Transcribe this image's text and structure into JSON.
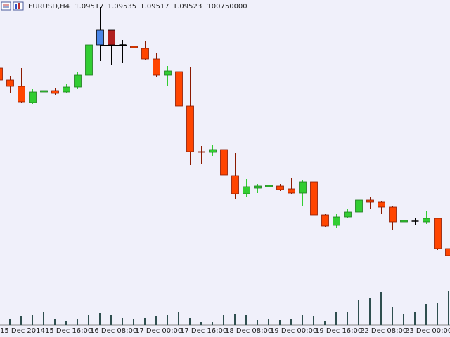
{
  "chart_data": {
    "type": "candlestick",
    "header": {
      "symbol": "EURUSD,H4",
      "open": 1.09517,
      "high": 1.09535,
      "low": 1.09517,
      "close": 1.09523,
      "volume": 100750000
    },
    "categories": [
      "15 Dec 2014",
      null,
      null,
      null,
      "15 Dec 16:00",
      null,
      null,
      null,
      "16 Dec 08:00",
      null,
      null,
      null,
      "17 Dec 00:00",
      null,
      null,
      null,
      "17 Dec 16:00",
      null,
      null,
      null,
      "18 Dec 08:00",
      null,
      null,
      null,
      "19 Dec 00:00",
      null,
      null,
      null,
      "19 Dec 16:00",
      null,
      null,
      null,
      "22 Dec 08:00",
      null,
      null,
      null,
      "23 Dec 00:00",
      null,
      null,
      null,
      "2"
    ],
    "open": [
      1.2503,
      1.2486,
      1.2477,
      1.2454,
      1.2469,
      1.2471,
      1.2469,
      1.2476,
      1.2493,
      1.2536,
      1.2557,
      1.2536,
      1.2534,
      1.2531,
      1.2516,
      1.2493,
      1.2498,
      1.2449,
      1.2384,
      1.2383,
      1.2387,
      1.235,
      1.2324,
      1.2332,
      1.2334,
      1.2335,
      1.2331,
      1.2325,
      1.2341,
      1.2294,
      1.2279,
      1.2291,
      1.2298,
      1.2315,
      1.2312,
      1.2305,
      1.2284,
      1.2285,
      1.2284,
      1.2289,
      1.2246
    ],
    "high": [
      1.2503,
      1.2492,
      1.2503,
      1.2473,
      1.2508,
      1.2475,
      1.2481,
      1.2497,
      1.2545,
      1.259,
      1.2557,
      1.2543,
      1.2538,
      1.2541,
      1.2524,
      1.2506,
      1.2502,
      1.2505,
      1.2392,
      1.2394,
      1.2388,
      1.2382,
      1.2345,
      1.2338,
      1.234,
      1.2338,
      1.2346,
      1.2344,
      1.235,
      1.2295,
      1.2295,
      1.2303,
      1.2323,
      1.232,
      1.2314,
      1.2306,
      1.229,
      1.229,
      1.2299,
      1.229,
      1.2252
    ],
    "low": [
      1.2486,
      1.2467,
      1.2454,
      1.2452,
      1.245,
      1.2464,
      1.2467,
      1.2473,
      1.2473,
      1.2513,
      1.2507,
      1.251,
      1.2528,
      1.2515,
      1.249,
      1.2478,
      1.2425,
      1.2365,
      1.2366,
      1.2378,
      1.235,
      1.2317,
      1.2319,
      1.2325,
      1.2327,
      1.2328,
      1.2323,
      1.2306,
      1.2278,
      1.2276,
      1.2275,
      1.2289,
      1.2298,
      1.2303,
      1.2295,
      1.2273,
      1.2278,
      1.228,
      1.2281,
      1.2244,
      1.2227
    ],
    "close": [
      1.2486,
      1.2477,
      1.2455,
      1.2469,
      1.2471,
      1.2467,
      1.2476,
      1.2493,
      1.2536,
      1.2557,
      1.2536,
      1.2536,
      1.2532,
      1.2516,
      1.2493,
      1.2499,
      1.2449,
      1.2384,
      1.2383,
      1.2387,
      1.2351,
      1.2324,
      1.2334,
      1.2335,
      1.2336,
      1.233,
      1.2325,
      1.2341,
      1.2294,
      1.2278,
      1.2291,
      1.2298,
      1.2315,
      1.2312,
      1.2305,
      1.2284,
      1.2286,
      1.2285,
      1.2289,
      1.2246,
      1.2236
    ],
    "volume": [
      300,
      800,
      1300,
      1500,
      1900,
      800,
      600,
      800,
      1400,
      1700,
      1400,
      1000,
      800,
      1000,
      1300,
      1400,
      1800,
      1000,
      500,
      500,
      1500,
      1600,
      1500,
      700,
      800,
      700,
      800,
      1400,
      1300,
      600,
      1800,
      1800,
      3500,
      3900,
      4700,
      2600,
      1600,
      1900,
      3000,
      3100,
      4800
    ],
    "ylim": [
      1.2137,
      1.26
    ],
    "volume_lim": [
      0,
      10000
    ],
    "up_color": "#32cd32",
    "up_edge": "#1e7a1e",
    "down_color": "#ff4500",
    "down_edge": "#8b1a00",
    "doji_color": "#000000",
    "volume_color": "#2f4f4f",
    "highlight": {
      "indices": [
        9,
        10
      ],
      "up_color": "#4a86e8",
      "down_color": "#b02020",
      "edge": "#000000"
    }
  }
}
